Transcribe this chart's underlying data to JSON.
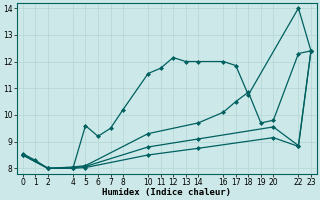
{
  "xlabel": "Humidex (Indice chaleur)",
  "bg_color": "#cce8e8",
  "grid_color_major": "#b8d8d8",
  "grid_color_minor": "#d4e8e8",
  "line_color": "#006060",
  "xlim": [
    -0.5,
    23.5
  ],
  "ylim": [
    7.8,
    14.2
  ],
  "yticks": [
    8,
    9,
    10,
    11,
    12,
    13,
    14
  ],
  "xticks": [
    0,
    1,
    2,
    4,
    5,
    6,
    7,
    8,
    10,
    11,
    12,
    13,
    14,
    16,
    17,
    18,
    19,
    20,
    22,
    23
  ],
  "lines": [
    {
      "x": [
        0,
        1,
        2,
        4,
        5,
        6,
        7,
        8,
        10,
        11,
        12,
        13,
        14,
        16,
        17,
        18,
        22,
        23
      ],
      "y": [
        8.55,
        8.3,
        8.0,
        8.0,
        9.6,
        9.2,
        9.5,
        10.2,
        11.55,
        11.75,
        12.15,
        12.0,
        12.0,
        12.0,
        11.85,
        10.75,
        14.0,
        12.4
      ]
    },
    {
      "x": [
        0,
        2,
        4,
        5,
        10,
        14,
        16,
        17,
        18,
        19,
        20,
        22,
        23
      ],
      "y": [
        8.5,
        8.0,
        8.05,
        8.1,
        9.3,
        9.7,
        10.1,
        10.5,
        10.85,
        9.7,
        9.8,
        12.3,
        12.4
      ]
    },
    {
      "x": [
        0,
        2,
        4,
        5,
        10,
        14,
        20,
        22,
        23
      ],
      "y": [
        8.5,
        8.0,
        8.02,
        8.07,
        8.8,
        9.1,
        9.55,
        8.85,
        12.4
      ]
    },
    {
      "x": [
        0,
        2,
        4,
        5,
        10,
        14,
        20,
        22,
        23
      ],
      "y": [
        8.5,
        8.0,
        8.0,
        8.03,
        8.5,
        8.75,
        9.15,
        8.82,
        12.4
      ]
    }
  ],
  "marker_style": "D",
  "marker_size": 2.0,
  "linewidth": 0.9,
  "tick_fontsize": 5.5,
  "xlabel_fontsize": 6.5
}
